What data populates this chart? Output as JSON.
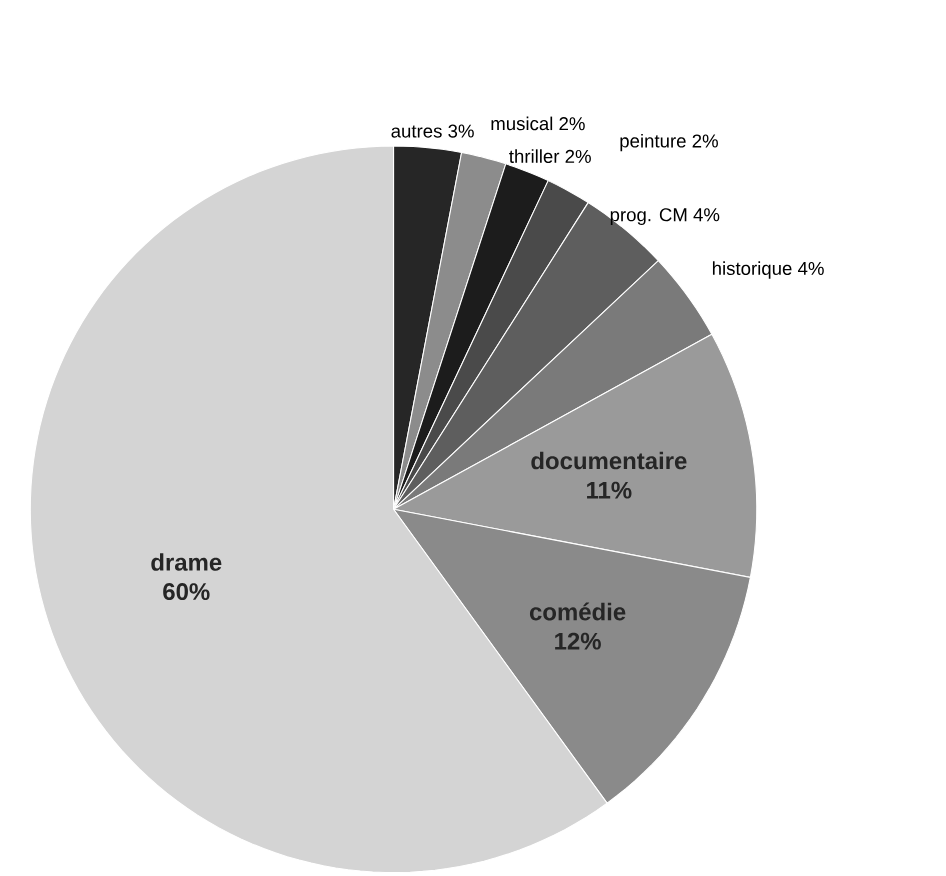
{
  "chart_data": {
    "type": "pie",
    "categories": [
      "autres",
      "musical",
      "thriller",
      "peinture",
      "prog. CM",
      "historique",
      "documentaire",
      "comédie",
      "drame"
    ],
    "values": [
      3,
      2,
      2,
      2,
      4,
      4,
      11,
      12,
      60
    ],
    "value_labels": [
      "3%",
      "2%",
      "2%",
      "2%",
      "4%",
      "4%",
      "11%",
      "12%",
      "60%"
    ],
    "colors": [
      "#262626",
      "#8c8c8c",
      "#1c1c1c",
      "#4a4a4a",
      "#5e5e5e",
      "#7a7a7a",
      "#9a9a9a",
      "#8a8a8a",
      "#d4d4d4"
    ]
  }
}
